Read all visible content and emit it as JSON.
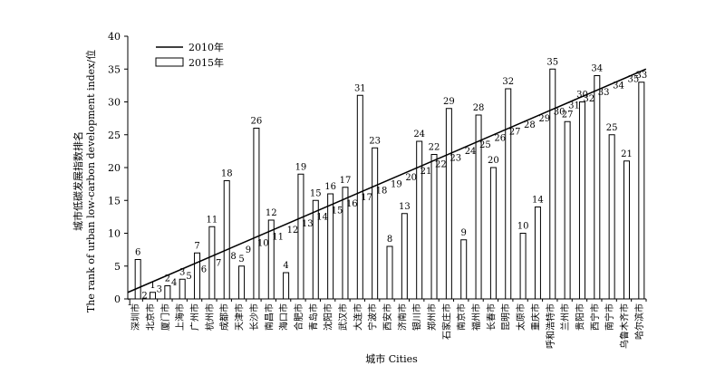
{
  "chart_data": {
    "type": "bar",
    "title": "",
    "xlabel": "城市 Cities",
    "ylabel": "城市低碳发展指数排名",
    "ylabel_en": "The rank of urban low-carbon development index/位",
    "ylim": [
      0,
      40
    ],
    "yticks": [
      0,
      5,
      10,
      15,
      20,
      25,
      30,
      35,
      40
    ],
    "legend_placement": "top-left",
    "categories": [
      "深圳市",
      "北京市",
      "厦门市",
      "上海市",
      "广州市",
      "杭州市",
      "成都市",
      "天津市",
      "长沙市",
      "南昌市",
      "海口市",
      "合肥市",
      "青岛市",
      "沈阳市",
      "武汉市",
      "大连市",
      "宁波市",
      "西安市",
      "济南市",
      "银川市",
      "郑州市",
      "石家庄市",
      "南京市",
      "福州市",
      "长春市",
      "昆明市",
      "太原市",
      "重庆市",
      "呼和浩特市",
      "兰州市",
      "贵阳市",
      "西宁市",
      "南宁市",
      "乌鲁木齐市",
      "哈尔滨市"
    ],
    "series": [
      {
        "name": "2010年",
        "type": "line",
        "values": [
          1,
          2,
          3,
          4,
          5,
          6,
          7,
          8,
          9,
          10,
          11,
          12,
          13,
          14,
          15,
          16,
          17,
          18,
          19,
          20,
          21,
          22,
          23,
          24,
          25,
          26,
          27,
          28,
          29,
          30,
          31,
          32,
          33,
          34,
          35
        ]
      },
      {
        "name": "2015年",
        "type": "bar",
        "values": [
          6,
          1,
          2,
          3,
          7,
          11,
          18,
          5,
          26,
          12,
          4,
          19,
          15,
          16,
          17,
          31,
          23,
          8,
          13,
          24,
          22,
          29,
          9,
          28,
          20,
          32,
          10,
          14,
          35,
          27,
          30,
          34,
          25,
          21,
          33
        ]
      }
    ]
  }
}
